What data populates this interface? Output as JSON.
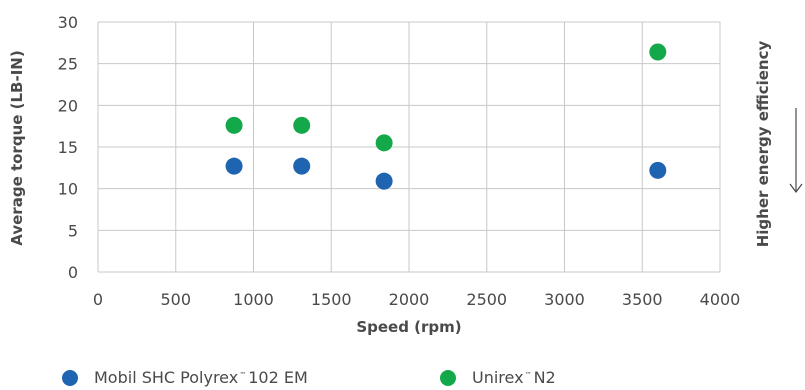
{
  "chart_data": {
    "type": "scatter",
    "xlabel": "Speed (rpm)",
    "ylabel": "Average torque (LB-IN)",
    "right_annotation": "Higher energy efficiency",
    "xlim": [
      0,
      4000
    ],
    "ylim": [
      0,
      30
    ],
    "xticks": [
      "0",
      "500",
      "1000",
      "1500",
      "2000",
      "2500",
      "3000",
      "3500",
      "4000"
    ],
    "yticks": [
      "0",
      "5",
      "10",
      "15",
      "20",
      "25",
      "30"
    ],
    "grid": true,
    "legend_position": "bottom",
    "series": [
      {
        "name": "Mobil SHC Polyrex™ 102 EM",
        "color": "#1f64b0",
        "points": [
          [
            875,
            12.7
          ],
          [
            1310,
            12.7
          ],
          [
            1840,
            10.9
          ],
          [
            3600,
            12.2
          ]
        ]
      },
      {
        "name": "Unirex™ N2",
        "color": "#13a84a",
        "points": [
          [
            875,
            17.6
          ],
          [
            1310,
            17.6
          ],
          [
            1840,
            15.5
          ],
          [
            3600,
            26.4
          ]
        ]
      }
    ]
  },
  "legend": {
    "item1_prefix": "Mobil SHC Polyrex",
    "item1_tm": "™",
    "item1_suffix": "102 EM",
    "item2_prefix": "Unirex",
    "item2_tm": "™",
    "item2_suffix": "N2"
  },
  "colors": {
    "grid": "#c8c8c8",
    "text": "#4a4a4a"
  }
}
